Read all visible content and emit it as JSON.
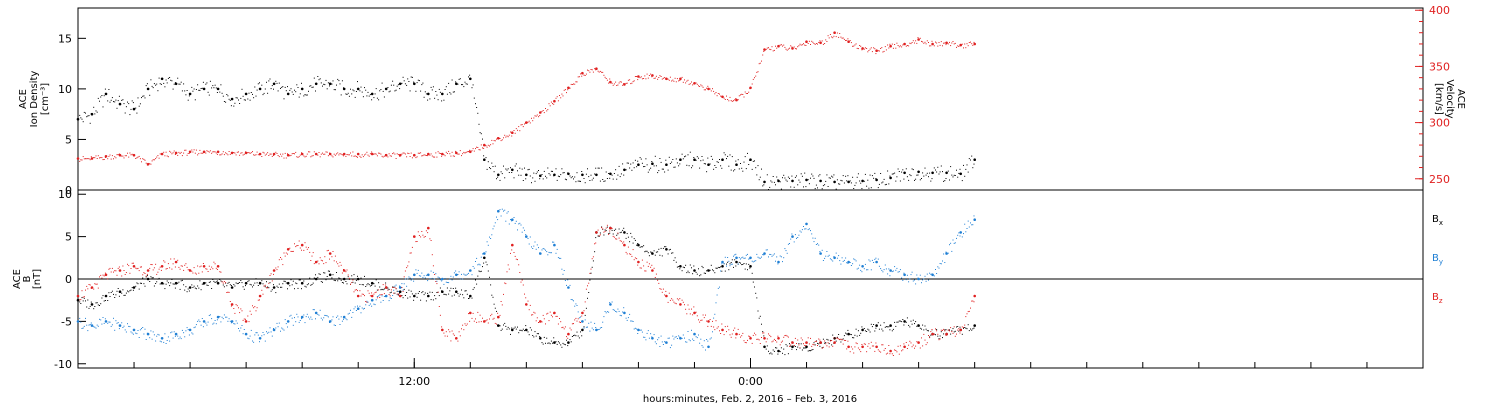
{
  "chart_data": [
    {
      "type": "scatter",
      "panel": "top",
      "ylabel_left": [
        "ACE",
        "Ion Density",
        "[cm⁻³]"
      ],
      "ylabel_right": [
        "ACE",
        "Velocity",
        "[km/s]"
      ],
      "left_axis": {
        "ylim": [
          0,
          18
        ],
        "ticks": [
          0,
          5,
          10,
          15
        ],
        "tick_labels": [
          "0",
          "5",
          "10",
          "15"
        ]
      },
      "right_axis": {
        "ylim": [
          240,
          402
        ],
        "ticks": [
          250,
          300,
          350,
          400
        ],
        "tick_labels": [
          "250",
          "300",
          "350",
          "400"
        ],
        "color": "#e02020"
      },
      "xlim_hours": [
        0,
        48
      ],
      "series": [
        {
          "color": "#000000",
          "axis": "left",
          "x": [
            0,
            0.5,
            1,
            1.5,
            2,
            2.5,
            3,
            3.5,
            4,
            4.5,
            5,
            5.5,
            6,
            6.5,
            7,
            7.5,
            8,
            8.5,
            9,
            9.5,
            10,
            10.5,
            11,
            11.5,
            12,
            12.5,
            13,
            13.5,
            14,
            14.5,
            15,
            15.5,
            16,
            16.5,
            17,
            17.5,
            18,
            18.5,
            19,
            19.5,
            20,
            20.5,
            21,
            21.5,
            22,
            22.5,
            23,
            23.5,
            24,
            24.5,
            25,
            25.5,
            26,
            26.5,
            27,
            27.5,
            28,
            28.5,
            29,
            29.5,
            30,
            30.5,
            31,
            31.5,
            32
          ],
          "values": [
            7,
            7.5,
            9.5,
            8.5,
            8,
            10,
            11,
            10.5,
            9.5,
            10,
            10,
            9,
            9.5,
            10,
            10.5,
            9.5,
            10,
            10.5,
            10.5,
            10,
            10,
            9.5,
            10,
            10.5,
            10.5,
            9.5,
            9.5,
            10.5,
            11,
            3,
            1.5,
            2,
            1.5,
            1.4,
            1.5,
            1.6,
            1.5,
            1.5,
            1.6,
            2,
            2.5,
            2.6,
            2.5,
            3,
            3,
            2.5,
            3,
            2.5,
            3,
            0.8,
            0.9,
            0.9,
            1,
            0.9,
            0.8,
            0.8,
            0.9,
            1,
            1.2,
            1.7,
            1.8,
            1.7,
            1.7,
            1.6,
            3
          ]
        },
        {
          "color": "#e02020",
          "axis": "right",
          "x": [
            0,
            0.5,
            1,
            1.5,
            2,
            2.5,
            3,
            3.5,
            4,
            4.5,
            5,
            5.5,
            6,
            6.5,
            7,
            7.5,
            8,
            8.5,
            9,
            9.5,
            10,
            10.5,
            11,
            11.5,
            12,
            12.5,
            13,
            13.5,
            14,
            14.5,
            15,
            15.5,
            16,
            16.5,
            17,
            17.5,
            18,
            18.5,
            19,
            19.5,
            20,
            20.5,
            21,
            21.5,
            22,
            22.5,
            23,
            23.5,
            24,
            24.5,
            25,
            25.5,
            26,
            26.5,
            27,
            27.5,
            28,
            28.5,
            29,
            29.5,
            30,
            30.5,
            31,
            31.5,
            32
          ],
          "values": [
            268,
            268,
            270,
            271,
            271,
            263,
            272,
            273,
            274,
            274,
            274,
            273,
            273,
            272,
            272,
            271,
            272,
            272,
            272,
            272,
            272,
            272,
            271,
            271,
            271,
            272,
            272,
            273,
            274,
            280,
            286,
            291,
            300,
            309,
            319,
            331,
            344,
            348,
            336,
            334,
            341,
            342,
            339,
            339,
            335,
            330,
            323,
            320,
            331,
            365,
            368,
            366,
            372,
            371,
            380,
            372,
            366,
            364,
            368,
            370,
            374,
            370,
            371,
            369,
            370
          ]
        }
      ]
    },
    {
      "type": "scatter",
      "panel": "bottom",
      "ylabel_left": [
        "ACE",
        "B",
        "[nT]"
      ],
      "left_axis": {
        "ylim": [
          -10.5,
          10.5
        ],
        "ticks": [
          -10,
          -5,
          0,
          5,
          10
        ],
        "tick_labels": [
          "-10",
          "-5",
          "0",
          "5",
          "10"
        ]
      },
      "zero_line": true,
      "xlim_hours": [
        0,
        48
      ],
      "x_ticks_hours": [
        12,
        24
      ],
      "x_tick_labels": [
        "12:00",
        "0:00"
      ],
      "xlabel": "hours:minutes, Feb.  2, 2016 – Feb.  3, 2016",
      "legend": [
        "Bx",
        "By",
        "Bz"
      ],
      "series": [
        {
          "name": "Bx",
          "color": "#000000",
          "x": [
            0,
            0.5,
            1,
            1.5,
            2,
            2.5,
            3,
            3.5,
            4,
            4.5,
            5,
            5.5,
            6,
            6.5,
            7,
            7.5,
            8,
            8.5,
            9,
            9.5,
            10,
            10.5,
            11,
            11.5,
            12,
            12.5,
            13,
            13.5,
            14,
            14.5,
            15,
            15.5,
            16,
            16.5,
            17,
            17.5,
            18,
            18.5,
            19,
            19.5,
            20,
            20.5,
            21,
            21.5,
            22,
            22.5,
            23,
            23.5,
            24,
            24.5,
            25,
            25.5,
            26,
            26.5,
            27,
            27.5,
            28,
            28.5,
            29,
            29.5,
            30,
            30.5,
            31,
            31.5,
            32
          ],
          "values": [
            -2.5,
            -3,
            -2,
            -1.5,
            -1,
            0,
            -0.5,
            -0.5,
            -1,
            -0.5,
            -0.5,
            -1,
            -0.5,
            -0.5,
            -1,
            -0.5,
            -0.5,
            0,
            0.5,
            0,
            0,
            -0.5,
            -1,
            -1.5,
            -2,
            -2,
            -1.5,
            -1.5,
            -2,
            2.5,
            -5.5,
            -6,
            -6,
            -7,
            -7.5,
            -7.5,
            -6,
            5.5,
            6,
            5.5,
            4,
            3,
            3.5,
            1.5,
            1,
            1,
            1.5,
            2,
            1.5,
            -8,
            -8.5,
            -8,
            -8,
            -7.5,
            -7,
            -6.5,
            -6,
            -5.5,
            -5.5,
            -5,
            -5.5,
            -6.5,
            -6.5,
            -6,
            -5.5
          ]
        },
        {
          "name": "By",
          "color": "#1f7fd4",
          "x": [
            0,
            0.5,
            1,
            1.5,
            2,
            2.5,
            3,
            3.5,
            4,
            4.5,
            5,
            5.5,
            6,
            6.5,
            7,
            7.5,
            8,
            8.5,
            9,
            9.5,
            10,
            10.5,
            11,
            11.5,
            12,
            12.5,
            13,
            13.5,
            14,
            14.5,
            15,
            15.5,
            16,
            16.5,
            17,
            17.5,
            18,
            18.5,
            19,
            19.5,
            20,
            20.5,
            21,
            21.5,
            22,
            22.5,
            23,
            23.5,
            24,
            24.5,
            25,
            25.5,
            26,
            26.5,
            27,
            27.5,
            28,
            28.5,
            29,
            29.5,
            30,
            30.5,
            31,
            31.5,
            32
          ],
          "values": [
            -5,
            -5.5,
            -5,
            -5.5,
            -6,
            -6.5,
            -7,
            -6.5,
            -6,
            -5,
            -4.5,
            -5,
            -6.5,
            -7,
            -6,
            -5,
            -4.5,
            -4,
            -5,
            -4.5,
            -3.5,
            -2.5,
            -2,
            -1,
            0.5,
            0.5,
            0,
            0.5,
            1,
            3,
            8,
            7,
            5,
            3,
            4,
            -1,
            -5,
            -6,
            -3,
            -4,
            -6,
            -7,
            -7.5,
            -7,
            -6.5,
            -8,
            2,
            2.5,
            2.5,
            3,
            2,
            5,
            6.5,
            3,
            2.5,
            2,
            1.5,
            2,
            1,
            0.5,
            0,
            0.5,
            3,
            5.5,
            7
          ]
        },
        {
          "name": "Bz",
          "color": "#e02020",
          "x": [
            0,
            0.5,
            1,
            1.5,
            2,
            2.5,
            3,
            3.5,
            4,
            4.5,
            5,
            5.5,
            6,
            6.5,
            7,
            7.5,
            8,
            8.5,
            9,
            9.5,
            10,
            10.5,
            11,
            11.5,
            12,
            12.5,
            13,
            13.5,
            14,
            14.5,
            15,
            15.5,
            16,
            16.5,
            17,
            17.5,
            18,
            18.5,
            19,
            19.5,
            20,
            20.5,
            21,
            21.5,
            22,
            22.5,
            23,
            23.5,
            24,
            24.5,
            25,
            25.5,
            26,
            26.5,
            27,
            27.5,
            28,
            28.5,
            29,
            29.5,
            30,
            30.5,
            31,
            31.5,
            32
          ],
          "values": [
            -2,
            -1,
            0.5,
            1,
            1.5,
            1,
            1.5,
            2,
            1,
            1.5,
            1.5,
            -3,
            -5,
            -2,
            1,
            3.5,
            4,
            2,
            3,
            1,
            -2,
            -2,
            -1,
            -2,
            5,
            6,
            -6,
            -7,
            -4,
            -5,
            -4.5,
            4,
            -3,
            -5,
            -4,
            -6.5,
            -4,
            5.5,
            6,
            4,
            2,
            1,
            -2,
            -3,
            -4,
            -5,
            -6,
            -6.5,
            -7,
            -7,
            -7,
            -7.5,
            -7.5,
            -7.5,
            -7.5,
            -8,
            -8,
            -8,
            -8.5,
            -8,
            -7.5,
            -6.5,
            -6.5,
            -6,
            -2
          ]
        }
      ]
    }
  ]
}
